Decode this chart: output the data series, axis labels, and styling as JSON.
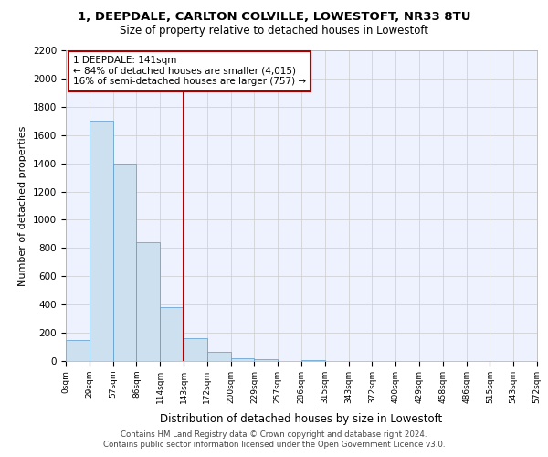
{
  "title_line1": "1, DEEPDALE, CARLTON COLVILLE, LOWESTOFT, NR33 8TU",
  "title_line2": "Size of property relative to detached houses in Lowestoft",
  "xlabel": "Distribution of detached houses by size in Lowestoft",
  "ylabel": "Number of detached properties",
  "bin_labels": [
    "0sqm",
    "29sqm",
    "57sqm",
    "86sqm",
    "114sqm",
    "143sqm",
    "172sqm",
    "200sqm",
    "229sqm",
    "257sqm",
    "286sqm",
    "315sqm",
    "343sqm",
    "372sqm",
    "400sqm",
    "429sqm",
    "458sqm",
    "486sqm",
    "515sqm",
    "543sqm",
    "572sqm"
  ],
  "bar_heights": [
    150,
    1700,
    1400,
    840,
    380,
    160,
    65,
    20,
    10,
    0,
    5,
    0,
    0,
    0,
    0,
    0,
    0,
    0,
    0,
    0
  ],
  "bar_color": "#cce0f0",
  "bar_edge_color": "#5599cc",
  "marker_line_color": "#aa0000",
  "annotation_text": "1 DEEPDALE: 141sqm\n← 84% of detached houses are smaller (4,015)\n16% of semi-detached houses are larger (757) →",
  "annotation_box_color": "#ffffff",
  "annotation_box_edge_color": "#aa0000",
  "ylim": [
    0,
    2200
  ],
  "yticks": [
    0,
    200,
    400,
    600,
    800,
    1000,
    1200,
    1400,
    1600,
    1800,
    2000,
    2200
  ],
  "footer_line1": "Contains HM Land Registry data © Crown copyright and database right 2024.",
  "footer_line2": "Contains public sector information licensed under the Open Government Licence v3.0.",
  "bg_color": "#eef2ff",
  "grid_color": "#cccccc"
}
